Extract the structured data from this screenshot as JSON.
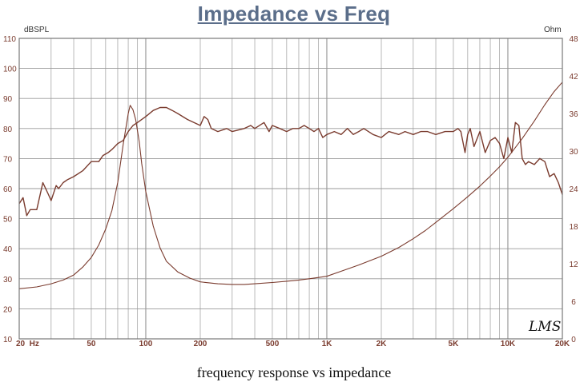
{
  "chart_data": {
    "type": "line",
    "title": "Impedance vs Freq",
    "caption": "frequency response vs impedance",
    "x_scale": "log",
    "xlim": [
      20,
      20000
    ],
    "x_ticks": [
      {
        "value": 20,
        "label": "20  Hz"
      },
      {
        "value": 50,
        "label": "50"
      },
      {
        "value": 100,
        "label": "100"
      },
      {
        "value": 200,
        "label": "200"
      },
      {
        "value": 500,
        "label": "500"
      },
      {
        "value": 1000,
        "label": "1K"
      },
      {
        "value": 2000,
        "label": "2K"
      },
      {
        "value": 5000,
        "label": "5K"
      },
      {
        "value": 10000,
        "label": "10K"
      },
      {
        "value": 20000,
        "label": "20K"
      }
    ],
    "left_axis": {
      "unit": "dBSPL",
      "lim": [
        10,
        110
      ],
      "ticks": [
        "10",
        "20",
        "30",
        "40",
        "50",
        "60",
        "70",
        "80",
        "90",
        "100",
        "110"
      ]
    },
    "right_axis": {
      "unit": "Ohm",
      "lim": [
        0,
        48
      ],
      "ticks": [
        "0",
        "6",
        "12",
        "18",
        "24",
        "30",
        "36",
        "42",
        "48"
      ]
    },
    "grid": true,
    "series": [
      {
        "role": "frequency response",
        "axis": "left",
        "color": "#7a3b2e",
        "x": [
          20,
          21,
          22,
          23,
          25,
          27,
          29,
          30,
          32,
          33,
          35,
          37,
          40,
          45,
          50,
          55,
          58,
          62,
          65,
          70,
          75,
          80,
          85,
          90,
          100,
          110,
          120,
          130,
          140,
          150,
          170,
          200,
          210,
          220,
          230,
          250,
          280,
          300,
          350,
          380,
          400,
          450,
          480,
          500,
          550,
          600,
          650,
          700,
          750,
          800,
          850,
          900,
          950,
          1000,
          1100,
          1200,
          1300,
          1400,
          1500,
          1600,
          1800,
          2000,
          2200,
          2500,
          2700,
          3000,
          3300,
          3600,
          4000,
          4500,
          5000,
          5300,
          5500,
          5800,
          6000,
          6200,
          6500,
          7000,
          7500,
          8000,
          8500,
          9000,
          9500,
          10000,
          10500,
          11000,
          11500,
          12000,
          12500,
          13000,
          14000,
          15000,
          16000,
          17000,
          18000,
          19000,
          20000
        ],
        "y": [
          55,
          57,
          51,
          53,
          53,
          62,
          58,
          56,
          61,
          60,
          62,
          63,
          64,
          66,
          69,
          69,
          71,
          72,
          73,
          75,
          76,
          79,
          81,
          82,
          84,
          86,
          87,
          87,
          86,
          85,
          83,
          81,
          84,
          83,
          80,
          79,
          80,
          79,
          80,
          81,
          80,
          82,
          79,
          81,
          80,
          79,
          80,
          80,
          81,
          80,
          79,
          80,
          77,
          78,
          79,
          78,
          80,
          78,
          79,
          80,
          78,
          77,
          79,
          78,
          79,
          78,
          79,
          79,
          78,
          79,
          79,
          80,
          79,
          72,
          78,
          80,
          74,
          79,
          72,
          76,
          77,
          75,
          70,
          77,
          72,
          82,
          81,
          70,
          68,
          69,
          68,
          70,
          69,
          64,
          65,
          62,
          58
        ]
      },
      {
        "role": "impedance",
        "axis": "right",
        "color": "#7a3b2e",
        "x": [
          20,
          25,
          30,
          35,
          40,
          45,
          50,
          55,
          60,
          65,
          70,
          75,
          80,
          82,
          85,
          88,
          92,
          95,
          100,
          110,
          120,
          130,
          150,
          175,
          200,
          250,
          300,
          350,
          400,
          500,
          600,
          700,
          800,
          900,
          1000,
          1200,
          1500,
          2000,
          2500,
          3000,
          3500,
          4000,
          5000,
          6000,
          7000,
          8000,
          9000,
          10000,
          12000,
          14000,
          16000,
          18000,
          20000
        ],
        "y": [
          8.0,
          8.3,
          8.8,
          9.4,
          10.2,
          11.5,
          13.0,
          15.0,
          17.5,
          20.5,
          25.0,
          31.0,
          36.0,
          37.3,
          36.6,
          35.0,
          31.5,
          28.0,
          23.5,
          18.0,
          14.5,
          12.4,
          10.7,
          9.7,
          9.1,
          8.8,
          8.7,
          8.7,
          8.8,
          9.0,
          9.2,
          9.4,
          9.6,
          9.8,
          10.0,
          10.8,
          11.8,
          13.2,
          14.6,
          16.0,
          17.3,
          18.6,
          20.8,
          22.7,
          24.4,
          26.0,
          27.5,
          29.0,
          32.0,
          34.8,
          37.4,
          39.5,
          41.0
        ]
      }
    ],
    "logo_text": "LMS"
  }
}
